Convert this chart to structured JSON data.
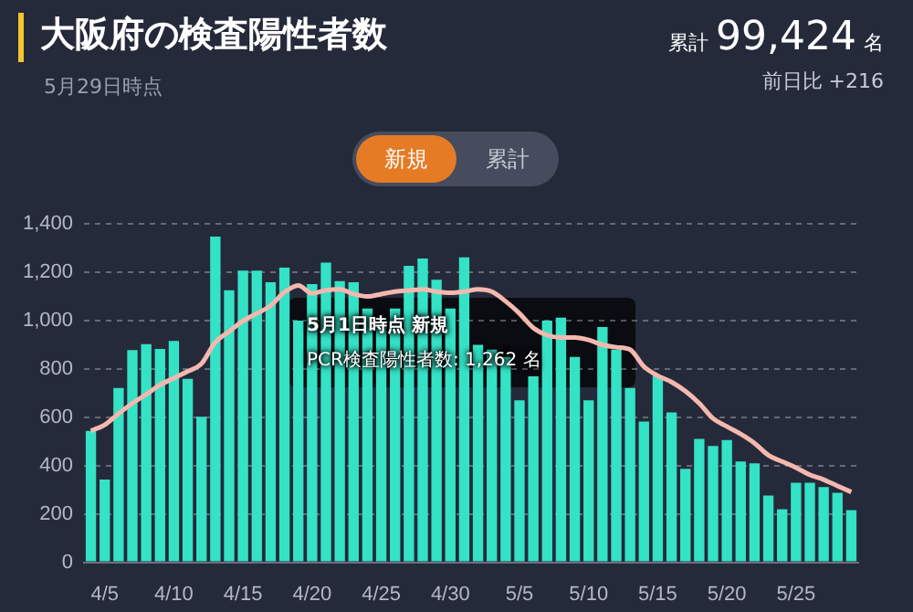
{
  "chart_data": {
    "type": "bar",
    "title": "大阪府の検査陽性者数",
    "subtitle": "5月29日時点",
    "annotations": [
      "累計",
      "99,424",
      "名",
      "前日比 +216",
      "新規",
      "累計",
      "5月1日時点 新規",
      "PCR検査陽性者数: 1,262 名"
    ],
    "categories": [
      null,
      "4/5",
      null,
      null,
      null,
      null,
      "4/10",
      null,
      null,
      null,
      null,
      "4/15",
      null,
      null,
      null,
      null,
      "4/20",
      null,
      null,
      null,
      null,
      "4/25",
      null,
      null,
      null,
      null,
      "4/30",
      null,
      null,
      null,
      null,
      "5/5",
      null,
      null,
      null,
      null,
      "5/10",
      null,
      null,
      null,
      null,
      "5/15",
      null,
      null,
      null,
      null,
      "5/20",
      null,
      null,
      null,
      null,
      "5/25",
      null,
      null,
      null,
      null
    ],
    "series": [
      {
        "type": "bar",
        "color": "#34e2c6",
        "values": [
          544,
          342,
          721,
          878,
          903,
          883,
          916,
          759,
          602,
          1348,
          1126,
          1207,
          1207,
          1159,
          1219,
          1000,
          1151,
          1240,
          1164,
          1159,
          1050,
          1000,
          1050,
          1227,
          1257,
          1169,
          1050,
          1262,
          900,
          880,
          850,
          670,
          770,
          1000,
          1012,
          850,
          670,
          974,
          880,
          721,
          582,
          772,
          620,
          387,
          511,
          481,
          506,
          417,
          410,
          276,
          220,
          329,
          329,
          311,
          288,
          216
        ]
      },
      {
        "type": "line",
        "color": "#f5b8ae",
        "values": [
          544,
          569,
          615,
          658,
          695,
          734,
          762,
          790,
          822,
          911,
          955,
          999,
          1030,
          1062,
          1118,
          1146,
          1113,
          1126,
          1130,
          1110,
          1100,
          1110,
          1120,
          1125,
          1130,
          1120,
          1115,
          1120,
          1130,
          1120,
          1080,
          1030,
          970,
          940,
          930,
          930,
          920,
          900,
          890,
          880,
          810,
          772,
          746,
          708,
          658,
          595,
          562,
          531,
          493,
          443,
          417,
          392,
          362,
          342,
          316,
          291
        ]
      }
    ],
    "ylim": [
      0,
      1400
    ],
    "yticks": [
      0,
      {
        "value": 200,
        "label": "200"
      },
      400,
      600,
      800,
      {
        "value": 1000,
        "label": "1,000"
      },
      {
        "value": 1200,
        "label": "1,200"
      },
      {
        "value": 1400,
        "label": "1,400"
      }
    ],
    "grid": "y",
    "marker": "none"
  }
}
